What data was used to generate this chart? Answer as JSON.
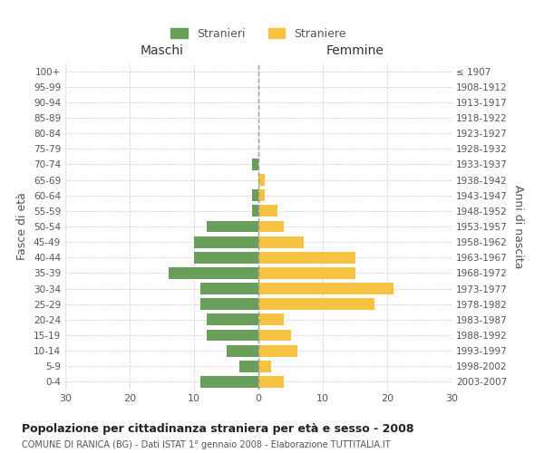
{
  "age_groups": [
    "0-4",
    "5-9",
    "10-14",
    "15-19",
    "20-24",
    "25-29",
    "30-34",
    "35-39",
    "40-44",
    "45-49",
    "50-54",
    "55-59",
    "60-64",
    "65-69",
    "70-74",
    "75-79",
    "80-84",
    "85-89",
    "90-94",
    "95-99",
    "100+"
  ],
  "birth_years": [
    "2003-2007",
    "1998-2002",
    "1993-1997",
    "1988-1992",
    "1983-1987",
    "1978-1982",
    "1973-1977",
    "1968-1972",
    "1963-1967",
    "1958-1962",
    "1953-1957",
    "1948-1952",
    "1943-1947",
    "1938-1942",
    "1933-1937",
    "1928-1932",
    "1923-1927",
    "1918-1922",
    "1913-1917",
    "1908-1912",
    "≤ 1907"
  ],
  "males": [
    9,
    3,
    5,
    8,
    8,
    9,
    9,
    14,
    10,
    10,
    8,
    1,
    1,
    0,
    1,
    0,
    0,
    0,
    0,
    0,
    0
  ],
  "females": [
    4,
    2,
    6,
    5,
    4,
    18,
    21,
    15,
    15,
    7,
    4,
    3,
    1,
    1,
    0,
    0,
    0,
    0,
    0,
    0,
    0
  ],
  "male_color": "#6a9e5b",
  "female_color": "#f5c242",
  "title": "Popolazione per cittadinanza straniera per età e sesso - 2008",
  "subtitle": "COMUNE DI RANICA (BG) - Dati ISTAT 1° gennaio 2008 - Elaborazione TUTTITALIA.IT",
  "ylabel_left": "Fasce di età",
  "ylabel_right": "Anni di nascita",
  "xlabel_maschi": "Maschi",
  "xlabel_femmine": "Femmine",
  "legend_male": "Stranieri",
  "legend_female": "Straniere",
  "xlim": 30,
  "background_color": "#ffffff",
  "grid_color": "#cccccc",
  "text_color": "#555555",
  "dashed_line_color": "#999999",
  "bar_height": 0.75
}
